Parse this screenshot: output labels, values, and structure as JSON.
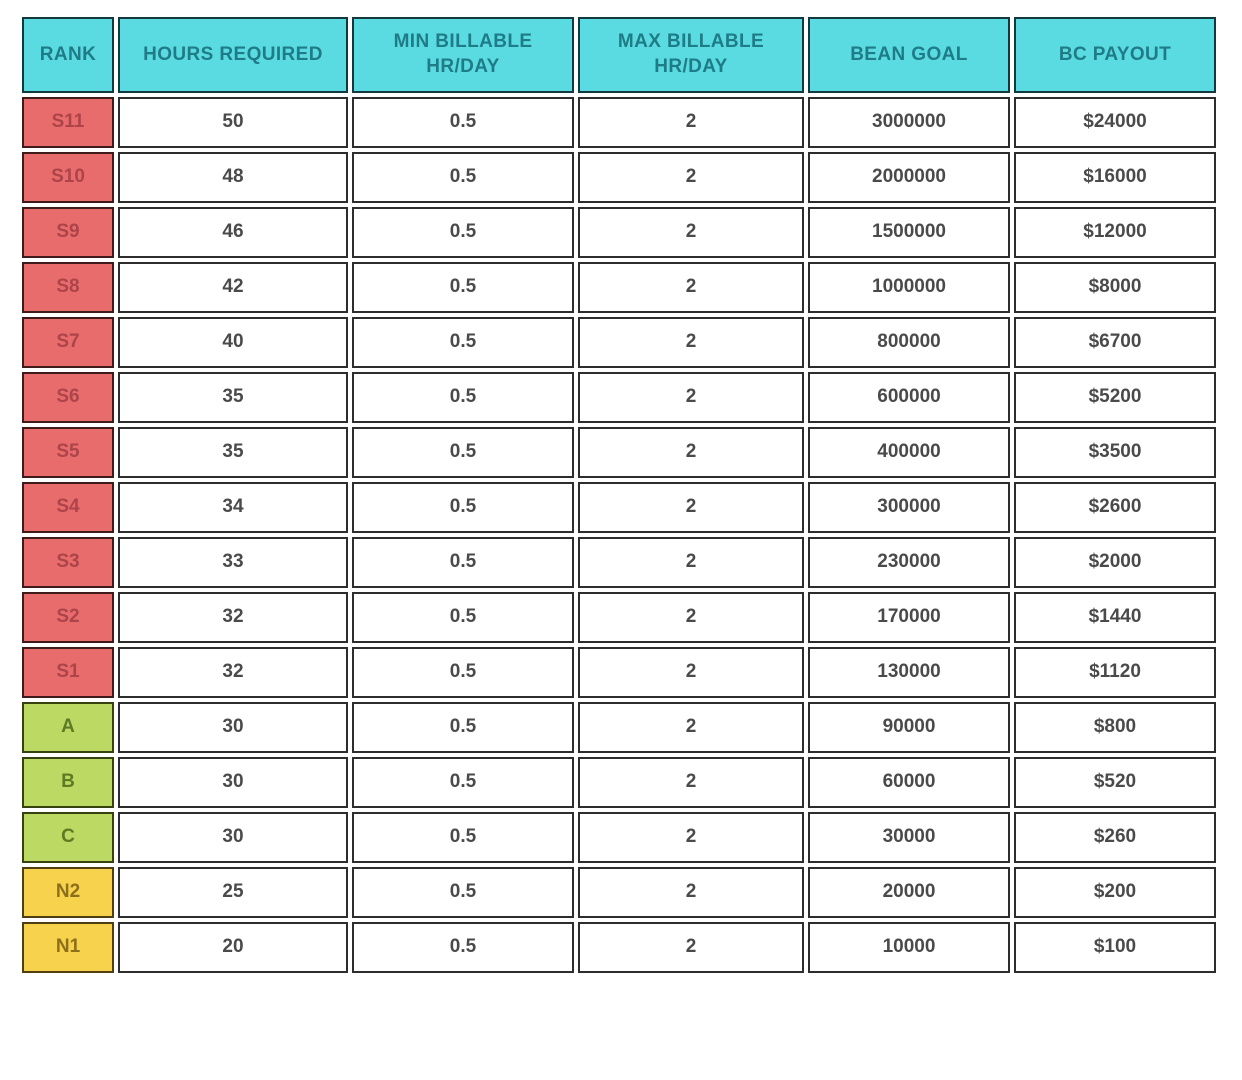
{
  "chart_data": {
    "type": "table",
    "columns": [
      "RANK",
      "HOURS REQUIRED",
      "MIN BILLABLE HR/DAY",
      "MAX BILLABLE HR/DAY",
      "BEAN GOAL",
      "BC PAYOUT"
    ],
    "rows": [
      {
        "rank": "S11",
        "tier": "s",
        "hours": "50",
        "min_billable": "0.5",
        "max_billable": "2",
        "bean_goal": "3000000",
        "bc_payout": "$24000"
      },
      {
        "rank": "S10",
        "tier": "s",
        "hours": "48",
        "min_billable": "0.5",
        "max_billable": "2",
        "bean_goal": "2000000",
        "bc_payout": "$16000"
      },
      {
        "rank": "S9",
        "tier": "s",
        "hours": "46",
        "min_billable": "0.5",
        "max_billable": "2",
        "bean_goal": "1500000",
        "bc_payout": "$12000"
      },
      {
        "rank": "S8",
        "tier": "s",
        "hours": "42",
        "min_billable": "0.5",
        "max_billable": "2",
        "bean_goal": "1000000",
        "bc_payout": "$8000"
      },
      {
        "rank": "S7",
        "tier": "s",
        "hours": "40",
        "min_billable": "0.5",
        "max_billable": "2",
        "bean_goal": "800000",
        "bc_payout": "$6700"
      },
      {
        "rank": "S6",
        "tier": "s",
        "hours": "35",
        "min_billable": "0.5",
        "max_billable": "2",
        "bean_goal": "600000",
        "bc_payout": "$5200"
      },
      {
        "rank": "S5",
        "tier": "s",
        "hours": "35",
        "min_billable": "0.5",
        "max_billable": "2",
        "bean_goal": "400000",
        "bc_payout": "$3500"
      },
      {
        "rank": "S4",
        "tier": "s",
        "hours": "34",
        "min_billable": "0.5",
        "max_billable": "2",
        "bean_goal": "300000",
        "bc_payout": "$2600"
      },
      {
        "rank": "S3",
        "tier": "s",
        "hours": "33",
        "min_billable": "0.5",
        "max_billable": "2",
        "bean_goal": "230000",
        "bc_payout": "$2000"
      },
      {
        "rank": "S2",
        "tier": "s",
        "hours": "32",
        "min_billable": "0.5",
        "max_billable": "2",
        "bean_goal": "170000",
        "bc_payout": "$1440"
      },
      {
        "rank": "S1",
        "tier": "s",
        "hours": "32",
        "min_billable": "0.5",
        "max_billable": "2",
        "bean_goal": "130000",
        "bc_payout": "$1120"
      },
      {
        "rank": "A",
        "tier": "abc",
        "hours": "30",
        "min_billable": "0.5",
        "max_billable": "2",
        "bean_goal": "90000",
        "bc_payout": "$800"
      },
      {
        "rank": "B",
        "tier": "abc",
        "hours": "30",
        "min_billable": "0.5",
        "max_billable": "2",
        "bean_goal": "60000",
        "bc_payout": "$520"
      },
      {
        "rank": "C",
        "tier": "abc",
        "hours": "30",
        "min_billable": "0.5",
        "max_billable": "2",
        "bean_goal": "30000",
        "bc_payout": "$260"
      },
      {
        "rank": "N2",
        "tier": "n",
        "hours": "25",
        "min_billable": "0.5",
        "max_billable": "2",
        "bean_goal": "20000",
        "bc_payout": "$200"
      },
      {
        "rank": "N1",
        "tier": "n",
        "hours": "20",
        "min_billable": "0.5",
        "max_billable": "2",
        "bean_goal": "10000",
        "bc_payout": "$100"
      }
    ]
  },
  "colors": {
    "header_bg": "#5adbe1",
    "header_text": "#1f7c86",
    "header_border": "#123a3e",
    "tier_s_bg": "#e96c6c",
    "tier_s_text": "#ac4449",
    "tier_s_border": "#3e1a1b",
    "tier_abc_bg": "#bcd963",
    "tier_abc_text": "#5e7b24",
    "tier_abc_border": "#37430f",
    "tier_n_bg": "#f7d24c",
    "tier_n_text": "#8c6f1b",
    "tier_n_border": "#4f3f10",
    "cell_border": "#2d2d2d",
    "cell_text": "#4a4a4a",
    "page_bg": "#ffffff"
  }
}
